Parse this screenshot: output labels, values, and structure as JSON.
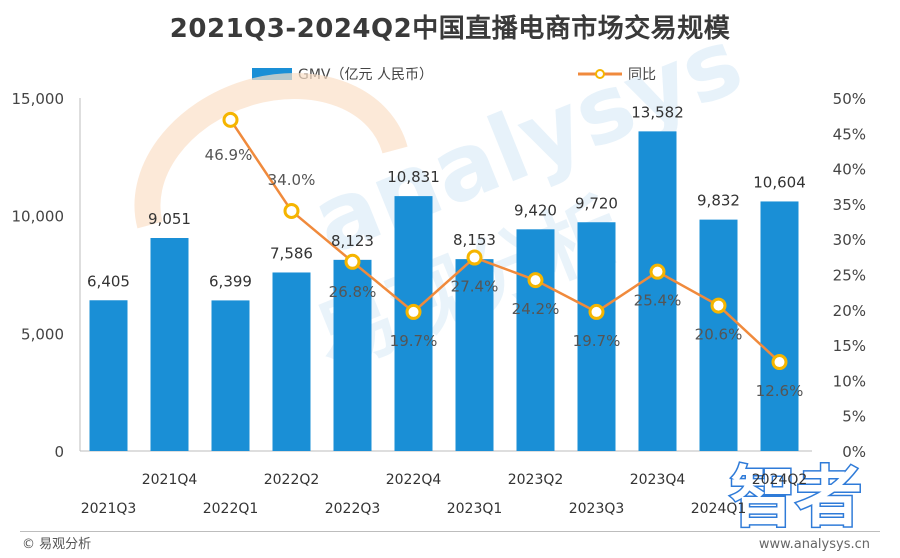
{
  "title": "2021Q3-2024Q2中国直播电商市场交易规模",
  "legend": {
    "bar_label": "GMV（亿元 人民币）",
    "line_label": "同比"
  },
  "footer": {
    "source": "© 易观分析",
    "url": "www.analysys.cn"
  },
  "watermark": {
    "brand": "analysys",
    "cn_brand": "易观分析",
    "stamp": "智者"
  },
  "colors": {
    "bar": "#1a8fd6",
    "line": "#f08a3c",
    "marker_fill": "#ffffff",
    "marker_stroke": "#f5b500",
    "title": "#3a3a3a"
  },
  "chart_data": {
    "type": "bar+line",
    "title": "2021Q3-2024Q2中国直播电商市场交易规模",
    "categories": [
      "2021Q3",
      "2021Q4",
      "2022Q1",
      "2022Q2",
      "2022Q3",
      "2022Q4",
      "2023Q1",
      "2023Q2",
      "2023Q3",
      "2023Q4",
      "2024Q1",
      "2024Q2"
    ],
    "category_labels": [
      "2021Q3",
      "2021Q4",
      "2022Q1",
      "2022Q2",
      "2022Q3",
      "2022Q4",
      "2023Q1",
      "2023Q2",
      "2023Q3",
      "2023Q4",
      "2024Q1",
      "2024Q2"
    ],
    "series": [
      {
        "name": "GMV（亿元 人民币）",
        "type": "bar",
        "axis": "left",
        "values": [
          6405,
          9051,
          6399,
          7586,
          8123,
          10831,
          8153,
          9420,
          9720,
          13582,
          9832,
          10604
        ],
        "labels": [
          "6,405",
          "9,051",
          "6,399",
          "7,586",
          "8,123",
          "10,831",
          "8,153",
          "9,420",
          "9,720",
          "13,582",
          "9,832",
          "10,604"
        ]
      },
      {
        "name": "同比",
        "type": "line",
        "axis": "right",
        "values": [
          null,
          null,
          46.9,
          34.0,
          26.8,
          19.7,
          27.4,
          24.2,
          19.7,
          25.4,
          20.6,
          12.6
        ],
        "labels": [
          "",
          "",
          "46.9%",
          "34.0%",
          "26.8%",
          "19.7%",
          "27.4%",
          "24.2%",
          "19.7%",
          "25.4%",
          "20.6%",
          "12.6%"
        ]
      }
    ],
    "y_left": {
      "ylim": [
        0,
        15000
      ],
      "ticks": [
        0,
        5000,
        10000,
        15000
      ],
      "tick_labels": [
        "0",
        "5,000",
        "10,000",
        "15,000"
      ]
    },
    "y_right": {
      "ylim": [
        0,
        50
      ],
      "ticks": [
        0,
        5,
        10,
        15,
        20,
        25,
        30,
        35,
        40,
        45,
        50
      ],
      "tick_labels": [
        "0%",
        "5%",
        "10%",
        "15%",
        "20%",
        "25%",
        "30%",
        "35%",
        "40%",
        "45%",
        "50%"
      ]
    },
    "grid": false,
    "legend_position": "top"
  }
}
